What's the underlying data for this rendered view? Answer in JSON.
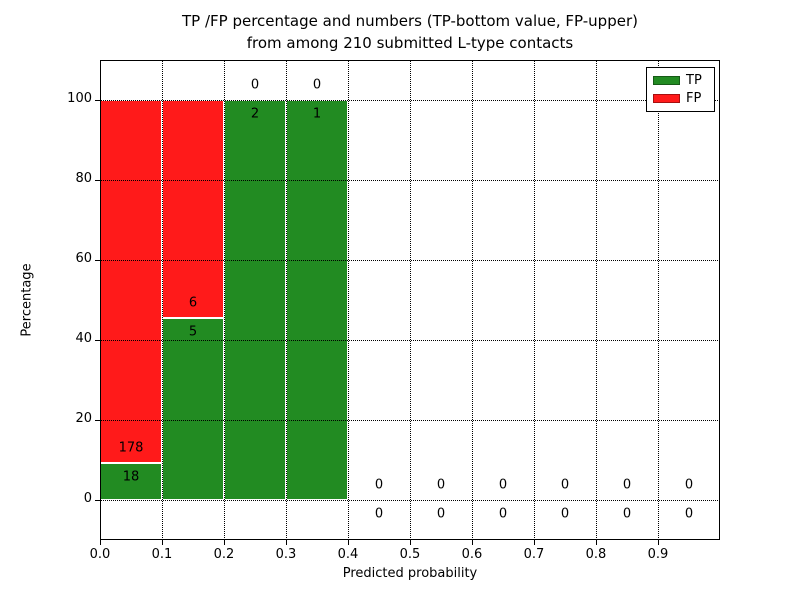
{
  "chart_data": {
    "type": "bar",
    "stacked": true,
    "title_lines": [
      "TP /FP percentage and numbers (TP-bottom value, FP-upper)",
      "from among 210 submitted L-type contacts"
    ],
    "xlabel": "Predicted probability",
    "ylabel": "Percentage",
    "xlim": [
      0.0,
      1.0
    ],
    "ylim": [
      -10,
      110
    ],
    "bin_width": 0.1,
    "bin_edges": [
      0.0,
      0.1,
      0.2,
      0.3,
      0.4,
      0.5,
      0.6,
      0.7,
      0.8,
      0.9,
      1.0
    ],
    "xtick_labels": [
      "0.0",
      "0.1",
      "0.2",
      "0.3",
      "0.4",
      "0.5",
      "0.6",
      "0.7",
      "0.8",
      "0.9"
    ],
    "ytick_values": [
      0,
      20,
      40,
      60,
      80,
      100
    ],
    "ytick_labels": [
      "0",
      "20",
      "40",
      "60",
      "80",
      "100"
    ],
    "grid": "dotted",
    "total_contacts": 210,
    "legend": {
      "position": "upper-right",
      "entries": [
        {
          "label": "TP",
          "color": "#228b22"
        },
        {
          "label": "FP",
          "color": "#ff1a1a"
        }
      ]
    },
    "series": [
      {
        "name": "TP",
        "color": "#228b22",
        "counts": [
          18,
          5,
          2,
          1,
          0,
          0,
          0,
          0,
          0,
          0
        ],
        "pct": [
          9.2,
          45.5,
          100,
          100,
          0,
          0,
          0,
          0,
          0,
          0
        ]
      },
      {
        "name": "FP",
        "color": "#ff1a1a",
        "counts": [
          178,
          6,
          0,
          0,
          0,
          0,
          0,
          0,
          0,
          0
        ],
        "pct": [
          90.8,
          54.5,
          0,
          0,
          0,
          0,
          0,
          0,
          0,
          0
        ]
      }
    ]
  }
}
